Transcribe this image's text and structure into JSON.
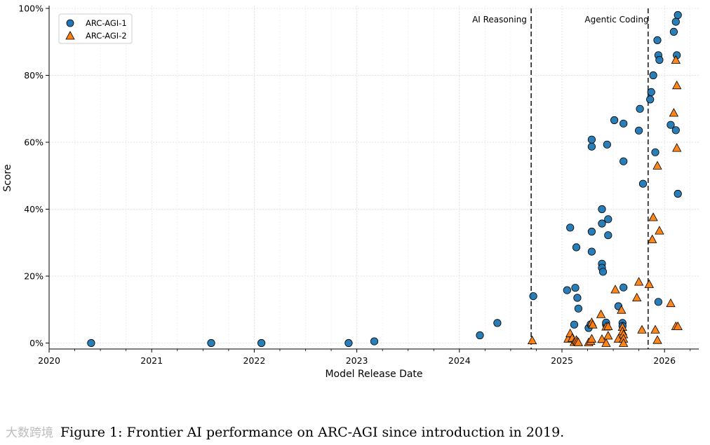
{
  "chart_data": {
    "type": "scatter",
    "title": "",
    "xlabel": "Model Release Date",
    "ylabel": "Score",
    "xlim": [
      2020.0,
      2026.25
    ],
    "ylim": [
      -2,
      100
    ],
    "x_ticks": [
      2020,
      2021,
      2022,
      2023,
      2024,
      2025,
      2026
    ],
    "x_tick_labels": [
      "2020",
      "2021",
      "2022",
      "2023",
      "2024",
      "2025",
      "2026"
    ],
    "y_ticks": [
      0,
      20,
      40,
      60,
      80,
      100
    ],
    "y_tick_labels": [
      "0%",
      "20%",
      "40%",
      "60%",
      "80%",
      "100%"
    ],
    "grid": true,
    "legend_position": "top-left",
    "colors": {
      "arc1": "#1f77b4",
      "arc2": "#ff7f0e",
      "vline": "#333333"
    },
    "annotations": [
      {
        "label": "AI Reasoning",
        "x": 2024.7
      },
      {
        "label": "Agentic Coding",
        "x": 2025.84
      }
    ],
    "series": [
      {
        "name": "ARC-AGI-1",
        "marker": "circle",
        "points": [
          [
            2020.41,
            0
          ],
          [
            2021.58,
            0
          ],
          [
            2022.07,
            0
          ],
          [
            2022.92,
            0
          ],
          [
            2023.17,
            0.5
          ],
          [
            2024.2,
            2.3
          ],
          [
            2024.37,
            6
          ],
          [
            2024.72,
            14
          ],
          [
            2025.05,
            15.8
          ],
          [
            2025.08,
            34.5
          ],
          [
            2025.12,
            5.5
          ],
          [
            2025.13,
            16.5
          ],
          [
            2025.14,
            28.6
          ],
          [
            2025.15,
            13.5
          ],
          [
            2025.16,
            10.3
          ],
          [
            2025.26,
            4.5
          ],
          [
            2025.28,
            5.6
          ],
          [
            2025.29,
            27.3
          ],
          [
            2025.29,
            33.3
          ],
          [
            2025.29,
            58.7
          ],
          [
            2025.29,
            60.8
          ],
          [
            2025.39,
            40
          ],
          [
            2025.39,
            35.7
          ],
          [
            2025.39,
            23.7
          ],
          [
            2025.39,
            22.5
          ],
          [
            2025.4,
            21.3
          ],
          [
            2025.43,
            5.5
          ],
          [
            2025.43,
            6.1
          ],
          [
            2025.44,
            59.3
          ],
          [
            2025.45,
            32.2
          ],
          [
            2025.45,
            37
          ],
          [
            2025.51,
            66.6
          ],
          [
            2025.55,
            11
          ],
          [
            2025.59,
            6
          ],
          [
            2025.59,
            5.1
          ],
          [
            2025.6,
            16.6
          ],
          [
            2025.6,
            65.6
          ],
          [
            2025.6,
            54.3
          ],
          [
            2025.75,
            63.5
          ],
          [
            2025.76,
            70
          ],
          [
            2025.79,
            47.6
          ],
          [
            2025.86,
            72.8
          ],
          [
            2025.87,
            75
          ],
          [
            2025.89,
            80
          ],
          [
            2025.91,
            57
          ],
          [
            2025.93,
            90.5
          ],
          [
            2025.94,
            12.3
          ],
          [
            2025.94,
            86
          ],
          [
            2025.95,
            84.6
          ],
          [
            2026.06,
            65.2
          ],
          [
            2026.09,
            93
          ],
          [
            2026.11,
            96
          ],
          [
            2026.11,
            63.6
          ],
          [
            2026.12,
            86
          ],
          [
            2026.13,
            98
          ],
          [
            2026.13,
            44.6
          ]
        ]
      },
      {
        "name": "ARC-AGI-2",
        "marker": "triangle",
        "points": [
          [
            2024.71,
            0.8
          ],
          [
            2025.06,
            1.3
          ],
          [
            2025.08,
            2.9
          ],
          [
            2025.1,
            1.5
          ],
          [
            2025.12,
            0.3
          ],
          [
            2025.14,
            0.9
          ],
          [
            2025.15,
            0.5
          ],
          [
            2025.16,
            0.2
          ],
          [
            2025.26,
            0.2
          ],
          [
            2025.28,
            0.6
          ],
          [
            2025.29,
            1.3
          ],
          [
            2025.29,
            6.2
          ],
          [
            2025.3,
            5.5
          ],
          [
            2025.38,
            8.6
          ],
          [
            2025.39,
            1.2
          ],
          [
            2025.43,
            4.9
          ],
          [
            2025.43,
            0
          ],
          [
            2025.45,
            2.2
          ],
          [
            2025.45,
            5
          ],
          [
            2025.52,
            16
          ],
          [
            2025.55,
            1.3
          ],
          [
            2025.58,
            9.9
          ],
          [
            2025.59,
            4.8
          ],
          [
            2025.59,
            3.5
          ],
          [
            2025.6,
            2.6
          ],
          [
            2025.6,
            1.3
          ],
          [
            2025.6,
            0
          ],
          [
            2025.73,
            13.6
          ],
          [
            2025.75,
            18.3
          ],
          [
            2025.78,
            4
          ],
          [
            2025.85,
            17.6
          ],
          [
            2025.88,
            31
          ],
          [
            2025.89,
            37.6
          ],
          [
            2025.91,
            4
          ],
          [
            2025.93,
            53
          ],
          [
            2025.93,
            0.9
          ],
          [
            2025.95,
            33.6
          ],
          [
            2026.06,
            11.9
          ],
          [
            2026.09,
            68.8
          ],
          [
            2026.11,
            84.6
          ],
          [
            2026.11,
            5
          ],
          [
            2026.12,
            77
          ],
          [
            2026.12,
            58.3
          ],
          [
            2026.13,
            5
          ]
        ]
      }
    ]
  },
  "caption": {
    "watermark": "大数跨境",
    "text": "Figure 1: Frontier AI performance on ARC-AGI since introduction in 2019."
  }
}
